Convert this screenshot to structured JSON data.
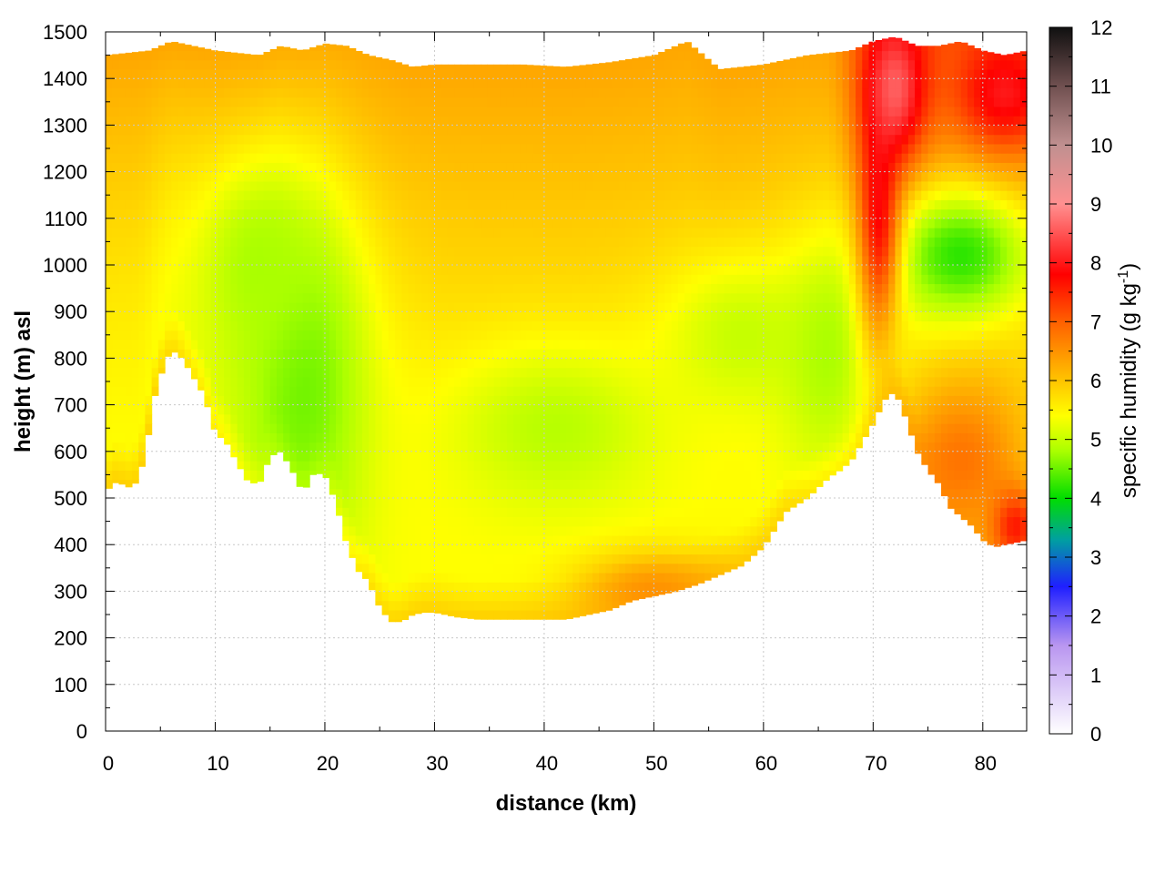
{
  "chart_data": {
    "type": "heatmap",
    "title": "",
    "xlabel": "distance (km)",
    "ylabel": "height (m) asl",
    "xlim": [
      0,
      84
    ],
    "ylim": [
      0,
      1500
    ],
    "xticks": [
      0,
      10,
      20,
      30,
      40,
      50,
      60,
      70,
      80
    ],
    "yticks": [
      0,
      100,
      200,
      300,
      400,
      500,
      600,
      700,
      800,
      900,
      1000,
      1100,
      1200,
      1300,
      1400,
      1500
    ],
    "grid": true,
    "colorbar": {
      "label_pre": "specific humidity (g kg",
      "label_sup": "-1",
      "label_post": ")",
      "range": [
        0,
        12
      ],
      "ticks": [
        0,
        1,
        2,
        3,
        4,
        5,
        6,
        7,
        8,
        9,
        10,
        11,
        12
      ],
      "stops": [
        {
          "value": 0,
          "color": "#ffffff"
        },
        {
          "value": 1.5,
          "color": "#b996f0"
        },
        {
          "value": 2.5,
          "color": "#1f1fff"
        },
        {
          "value": 3.3,
          "color": "#00a0a0"
        },
        {
          "value": 4.0,
          "color": "#00dd00"
        },
        {
          "value": 4.8,
          "color": "#aaff00"
        },
        {
          "value": 5.4,
          "color": "#ffff00"
        },
        {
          "value": 6.2,
          "color": "#ffb000"
        },
        {
          "value": 7.0,
          "color": "#ff6000"
        },
        {
          "value": 7.8,
          "color": "#ff0000"
        },
        {
          "value": 9.0,
          "color": "#ff9090"
        },
        {
          "value": 10.0,
          "color": "#c09090"
        },
        {
          "value": 11.0,
          "color": "#705050"
        },
        {
          "value": 12.0,
          "color": "#101010"
        }
      ]
    },
    "terrain_surface": {
      "x": [
        0,
        1,
        2,
        2.5,
        3.5,
        4.5,
        5.5,
        6.2,
        7,
        8,
        9,
        10,
        11,
        12,
        13,
        14,
        15,
        16,
        17,
        18,
        19,
        20,
        21,
        22,
        23,
        24,
        25,
        26,
        27,
        28,
        29,
        30,
        32,
        34,
        36,
        38,
        40,
        42,
        44,
        46,
        48,
        50,
        52,
        54,
        56,
        58,
        60,
        62,
        64,
        66,
        67,
        68,
        69,
        70,
        71,
        72,
        73,
        74,
        75,
        76,
        77,
        78,
        79,
        80,
        81,
        82,
        83,
        84
      ],
      "height_m": [
        515,
        535,
        525,
        520,
        580,
        720,
        800,
        815,
        800,
        760,
        720,
        640,
        620,
        575,
        535,
        530,
        590,
        600,
        560,
        510,
        555,
        550,
        490,
        400,
        345,
        320,
        265,
        235,
        235,
        250,
        255,
        255,
        245,
        240,
        240,
        240,
        240,
        240,
        250,
        260,
        280,
        290,
        300,
        315,
        335,
        355,
        395,
        470,
        500,
        545,
        560,
        580,
        620,
        660,
        710,
        730,
        670,
        600,
        560,
        530,
        480,
        460,
        440,
        410,
        395,
        400,
        405,
        410
      ]
    },
    "upper_boundary": {
      "x": [
        0,
        2,
        4,
        6,
        8,
        10,
        12,
        14,
        16,
        18,
        20,
        22,
        24,
        26,
        28,
        30,
        34,
        38,
        42,
        46,
        50,
        53,
        56,
        60,
        64,
        68,
        70,
        72,
        74,
        76,
        78,
        80,
        82,
        84
      ],
      "height_m": [
        1450,
        1455,
        1460,
        1480,
        1470,
        1460,
        1455,
        1450,
        1470,
        1460,
        1475,
        1470,
        1450,
        1440,
        1425,
        1430,
        1430,
        1430,
        1425,
        1435,
        1450,
        1480,
        1420,
        1430,
        1450,
        1460,
        1480,
        1490,
        1470,
        1470,
        1480,
        1460,
        1450,
        1460
      ]
    },
    "field_features": [
      {
        "x": 18,
        "height_m": 750,
        "value": 4.5,
        "sx_km": 4.5,
        "sy_m": 280
      },
      {
        "x": 14,
        "height_m": 1000,
        "value": 4.8,
        "sx_km": 4.0,
        "sy_m": 160
      },
      {
        "x": 41,
        "height_m": 650,
        "value": 4.9,
        "sx_km": 7.0,
        "sy_m": 130
      },
      {
        "x": 58,
        "height_m": 850,
        "value": 5.0,
        "sx_km": 5.0,
        "sy_m": 120
      },
      {
        "x": 66,
        "height_m": 800,
        "value": 4.8,
        "sx_km": 3.0,
        "sy_m": 170
      },
      {
        "x": 78,
        "height_m": 1020,
        "value": 4.2,
        "sx_km": 5.0,
        "sy_m": 110
      },
      {
        "x": 70.5,
        "height_m": 1130,
        "value": 7.8,
        "sx_km": 1.4,
        "sy_m": 200
      },
      {
        "x": 72,
        "height_m": 1380,
        "value": 8.6,
        "sx_km": 2.0,
        "sy_m": 110
      },
      {
        "x": 82,
        "height_m": 1370,
        "value": 8.0,
        "sx_km": 3.0,
        "sy_m": 80
      },
      {
        "x": 78,
        "height_m": 580,
        "value": 6.8,
        "sx_km": 4.5,
        "sy_m": 130
      },
      {
        "x": 83,
        "height_m": 440,
        "value": 7.6,
        "sx_km": 1.6,
        "sy_m": 60
      },
      {
        "x": 50,
        "height_m": 300,
        "value": 6.5,
        "sx_km": 5.0,
        "sy_m": 60
      }
    ]
  }
}
